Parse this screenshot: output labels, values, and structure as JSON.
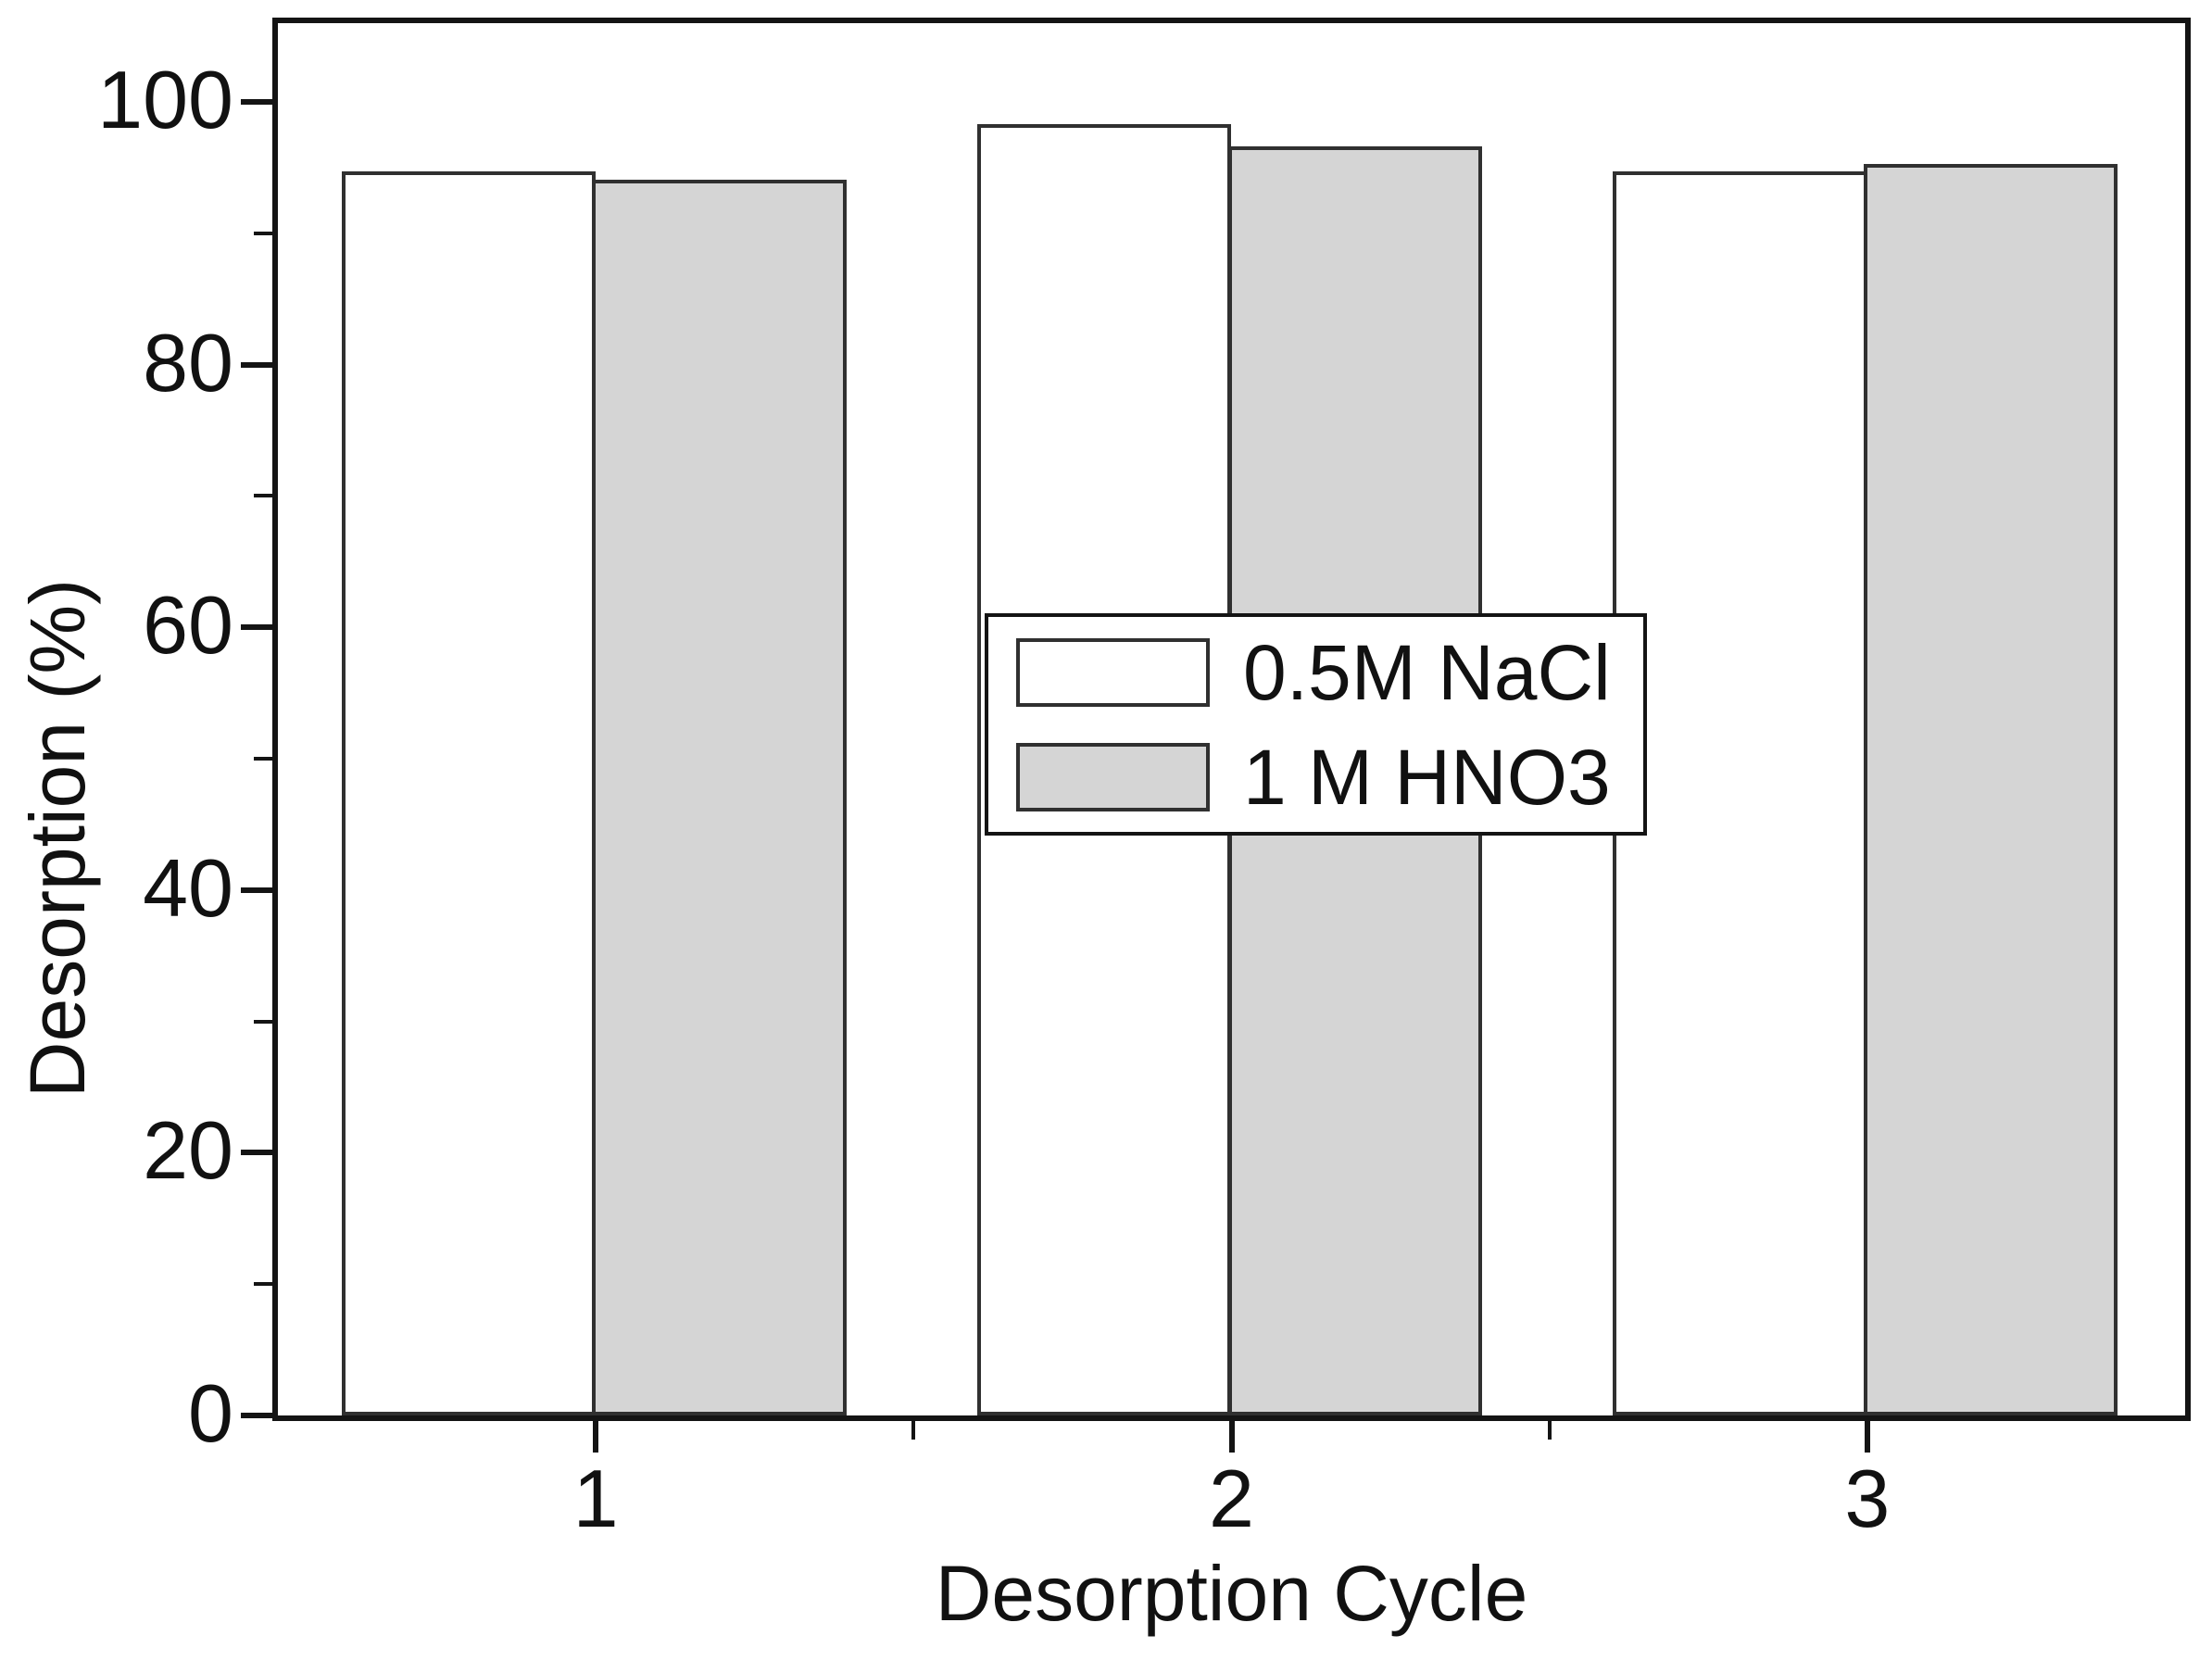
{
  "figure": {
    "background": "#ffffff"
  },
  "chart_data": {
    "type": "bar",
    "xlabel": "Desorption Cycle",
    "ylabel": "Desorption (%)",
    "categories": [
      "1",
      "2",
      "3"
    ],
    "series": [
      {
        "name": "0.5M NaCl",
        "fill": "#ffffff",
        "values": [
          94.7,
          98.3,
          94.7
        ]
      },
      {
        "name": "1 M HNO3",
        "fill": "#d5d5d5",
        "values": [
          94.1,
          96.6,
          95.3
        ]
      }
    ],
    "ylim": [
      0,
      106
    ],
    "xlim": [
      0.5,
      3.5
    ],
    "yticks_major": [
      0,
      20,
      40,
      60,
      80,
      100
    ],
    "yticks_minor": [
      10,
      30,
      50,
      70,
      90
    ],
    "xticks_minor": [
      1.5,
      2.5
    ],
    "bar_width": 0.4,
    "series_offsets": [
      -0.4,
      0
    ],
    "grid": false,
    "legend_position": "center",
    "colors": {
      "axis": "#141414",
      "bar_edge": "#303030",
      "text": "#111111",
      "nacl_fill": "#ffffff",
      "hno3_fill": "#d5d5d5"
    }
  }
}
